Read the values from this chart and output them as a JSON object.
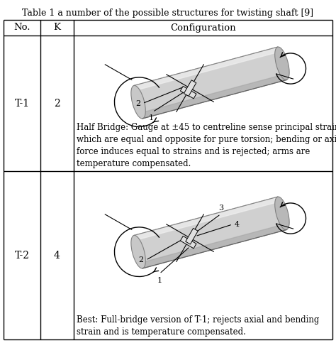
{
  "title": "Table 1 a number of the possible structures for twisting shaft [9]",
  "col_headers": [
    "No.",
    "K",
    "Configuration"
  ],
  "rows": [
    {
      "no": "T-1",
      "k": "2",
      "desc": "Half Bridge: Gauge at ±45 to centreline sense principal strains\nwhich are equal and opposite for pure torsion; bending or axial\nforce induces equal to strains and is rejected; arms are\ntemperature compensated."
    },
    {
      "no": "T-2",
      "k": "4",
      "desc": "Best: Full-bridge version of T-1; rejects axial and bending\nstrain and is temperature compensated."
    }
  ],
  "bg_color": "#ffffff",
  "text_color": "#000000",
  "border_color": "#000000",
  "title_fontsize": 9.0,
  "header_fontsize": 9.5,
  "cell_fontsize": 8.5,
  "no_fontsize": 10,
  "k_fontsize": 10
}
